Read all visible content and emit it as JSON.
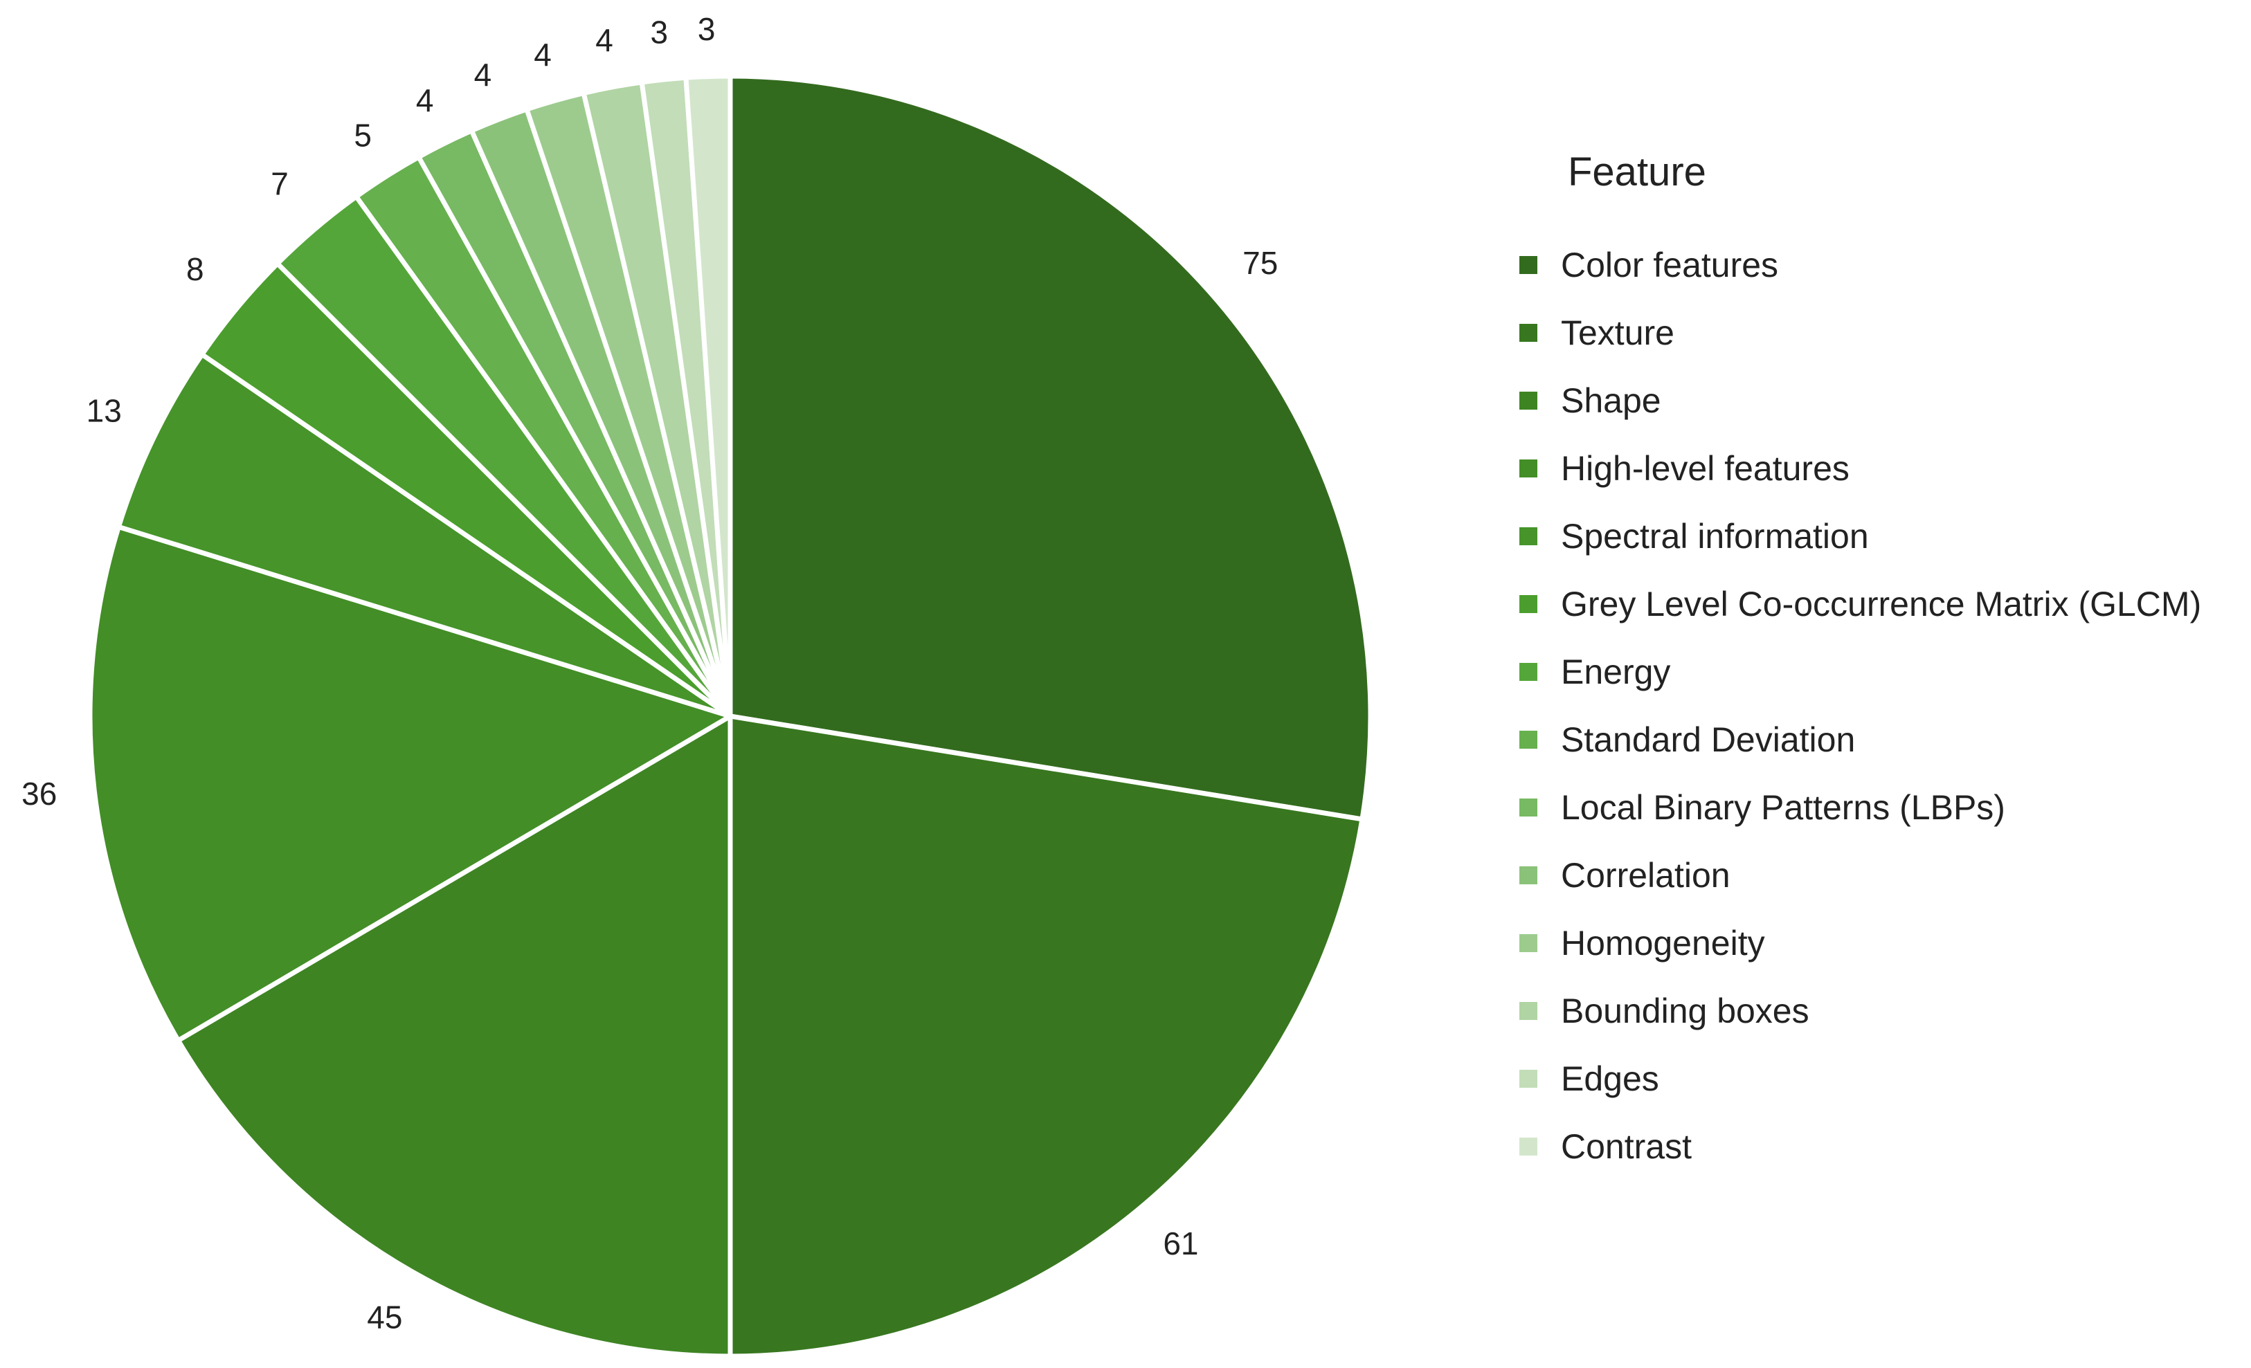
{
  "chart_data": {
    "type": "pie",
    "title": "",
    "legend": {
      "title": "Feature",
      "placement": "right"
    },
    "categories": [
      "Color features",
      "Texture",
      "Shape",
      "High-level features",
      "Spectral information",
      "Grey Level Co-occurrence Matrix (GLCM)",
      "Energy",
      "Standard Deviation",
      "Local Binary Patterns (LBPs)",
      "Correlation",
      "Homogeneity",
      "Bounding boxes",
      "Edges",
      "Contrast"
    ],
    "values": [
      75,
      61,
      45,
      36,
      13,
      8,
      7,
      5,
      4,
      4,
      4,
      4,
      3,
      3
    ],
    "colors": [
      "#336b1e",
      "#38771f",
      "#3e8423",
      "#438e27",
      "#46942a",
      "#4b9e2d",
      "#55a63a",
      "#66b04e",
      "#78b963",
      "#8bc27a",
      "#9dcb8e",
      "#b0d4a3",
      "#c2ddb8",
      "#d3e6cc"
    ],
    "data_labels": true,
    "start_angle": "12 o'clock",
    "direction": "clockwise"
  }
}
